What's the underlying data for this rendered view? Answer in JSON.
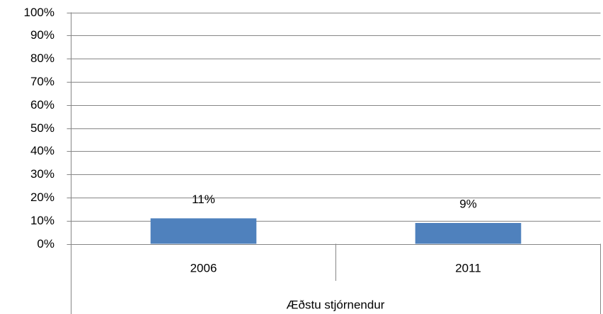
{
  "chart_data": {
    "type": "bar",
    "group_label": "Æðstu stjórnendur",
    "categories": [
      "2006",
      "2011"
    ],
    "values": [
      11,
      9
    ],
    "value_labels": [
      "11%",
      "9%"
    ],
    "color": "#4f81bd",
    "ylim": [
      0,
      100
    ],
    "yticks": [
      {
        "value": 0,
        "label": "0%"
      },
      {
        "value": 10,
        "label": "10%"
      },
      {
        "value": 20,
        "label": "20%"
      },
      {
        "value": 30,
        "label": "30%"
      },
      {
        "value": 40,
        "label": "40%"
      },
      {
        "value": 50,
        "label": "50%"
      },
      {
        "value": 60,
        "label": "60%"
      },
      {
        "value": 70,
        "label": "70%"
      },
      {
        "value": 80,
        "label": "80%"
      },
      {
        "value": 90,
        "label": "90%"
      },
      {
        "value": 100,
        "label": "100%"
      }
    ],
    "grid": true
  }
}
